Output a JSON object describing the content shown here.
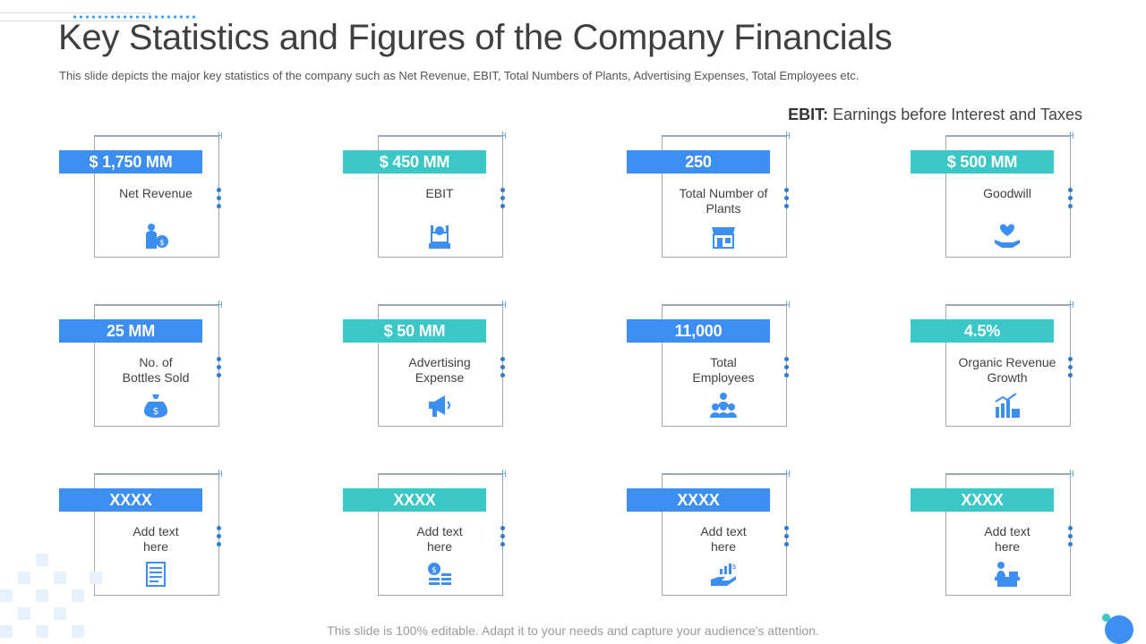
{
  "header": {
    "title": "Key Statistics and Figures of the Company Financials",
    "subtitle": "This slide depicts the major key statistics of the company such as Net Revenue, EBIT, Total Numbers of Plants, Advertising Expenses, Total Employees etc.",
    "ebit_abbr": "EBIT:",
    "ebit_text": " Earnings before Interest and Taxes"
  },
  "cards": [
    {
      "value": "$ 1,750 MM",
      "label": "Net Revenue",
      "icon": "businessman-money-icon",
      "color": "#3c8ff1"
    },
    {
      "value": "$ 450 MM",
      "label": "EBIT",
      "icon": "cash-register-icon",
      "color": "#3cc7c7"
    },
    {
      "value": "250",
      "label": "Total Number of Plants",
      "icon": "store-icon",
      "color": "#3c8ff1"
    },
    {
      "value": "$ 500 MM",
      "label": "Goodwill",
      "icon": "heart-hands-icon",
      "color": "#3cc7c7"
    },
    {
      "value": "25 MM",
      "label": "No. of\nBottles Sold",
      "icon": "money-bag-icon",
      "color": "#3c8ff1"
    },
    {
      "value": "$ 50 MM",
      "label": "Advertising\nExpense",
      "icon": "megaphone-icon",
      "color": "#3cc7c7"
    },
    {
      "value": "11,000",
      "label": "Total\nEmployees",
      "icon": "team-icon",
      "color": "#3c8ff1"
    },
    {
      "value": "4.5%",
      "label": "Organic Revenue\nGrowth",
      "icon": "growth-chart-icon",
      "color": "#3cc7c7"
    },
    {
      "value": "XXXX",
      "label": "Add text\nhere",
      "icon": "document-icon",
      "color": "#3c8ff1"
    },
    {
      "value": "XXXX",
      "label": "Add text\nhere",
      "icon": "coins-icon",
      "color": "#3cc7c7"
    },
    {
      "value": "XXXX",
      "label": "Add text\nhere",
      "icon": "hand-growth-icon",
      "color": "#3c8ff1"
    },
    {
      "value": "XXXX",
      "label": "Add text\nhere",
      "icon": "cashier-icon",
      "color": "#3cc7c7"
    }
  ],
  "footer": {
    "text": "This slide is 100% editable. Adapt it to your needs and capture your audience's attention."
  }
}
